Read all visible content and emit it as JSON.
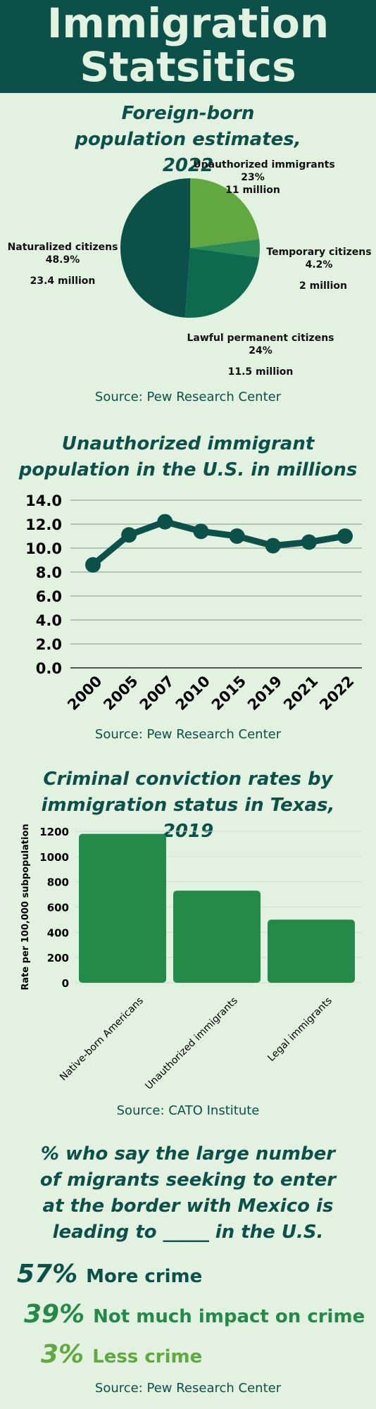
{
  "header": {
    "title": "Immigration Statsitics"
  },
  "pie": {
    "title": "Foreign-born population estimates, 2022",
    "source": "Source: Pew Research Center",
    "labels": {
      "unauthorized": {
        "name": "Unauthorized immigrants",
        "pct": "23%",
        "count": "11 million"
      },
      "temporary": {
        "name": "Temporary citizens",
        "pct": "4.2%",
        "count": "2 million"
      },
      "lawful": {
        "name": "Lawful permanent citizens",
        "pct": "24%",
        "count": "11.5 million"
      },
      "naturalized": {
        "name": "Naturalized citizens",
        "pct": "48.9%",
        "count": "23.4 million"
      }
    }
  },
  "line": {
    "title": "Unauthorized immigrant population in the U.S. in millions",
    "source": "Source: Pew Research Center"
  },
  "bar": {
    "title": "Criminal conviction rates by immigration status in Texas, 2019",
    "source": "Source: CATO Institute"
  },
  "survey": {
    "title": "% who say the large number of migrants seeking to enter at the border with Mexico is leading to _____ in the U.S.",
    "source": "Source: Pew Research Center",
    "items": [
      {
        "pct": "57%",
        "label": "More crime",
        "color": "#0b5049"
      },
      {
        "pct": "39%",
        "label": "Not much impact on crime",
        "color": "#248a4a"
      },
      {
        "pct": "3%",
        "label": "Less crime",
        "color": "#62a840"
      }
    ]
  },
  "chart_data": [
    {
      "type": "pie",
      "title": "Foreign-born population estimates, 2022",
      "slices": [
        {
          "name": "Unauthorized immigrants",
          "value": 23,
          "color": "#62a840"
        },
        {
          "name": "Temporary citizens",
          "value": 4.2,
          "color": "#2b8a55"
        },
        {
          "name": "Lawful permanent citizens",
          "value": 24,
          "color": "#0e6a4e"
        },
        {
          "name": "Naturalized citizens",
          "value": 48.9,
          "color": "#0b5049"
        }
      ]
    },
    {
      "type": "line",
      "title": "Unauthorized immigrant population in the U.S. in millions",
      "categories": [
        "2000",
        "2005",
        "2007",
        "2010",
        "2015",
        "2019",
        "2021",
        "2022"
      ],
      "values": [
        8.6,
        11.1,
        12.2,
        11.4,
        11.0,
        10.2,
        10.5,
        11.0
      ],
      "ylim": [
        0,
        14
      ],
      "yticks": [
        "0.0",
        "2.0",
        "4.0",
        "6.0",
        "8.0",
        "10.0",
        "12.0",
        "14.0"
      ],
      "grid": true,
      "color": "#0b5049"
    },
    {
      "type": "bar",
      "title": "Criminal conviction rates by immigration status in Texas, 2019",
      "categories": [
        "Native-born Americans",
        "Unauthorized immigrants",
        "Legal immigrants"
      ],
      "values": [
        1180,
        730,
        500
      ],
      "ylabel": "Rate per 100,000 subpopulation",
      "ylim": [
        0,
        1200
      ],
      "yticks": [
        "0",
        "200",
        "400",
        "600",
        "800",
        "1000",
        "1200"
      ],
      "color": "#248a4a"
    }
  ]
}
